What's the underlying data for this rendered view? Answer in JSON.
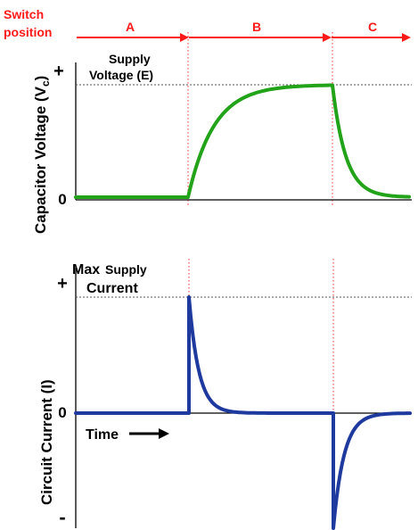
{
  "switch_position": {
    "line1": "Switch",
    "line2": "position",
    "phases": [
      "A",
      "B",
      "C"
    ]
  },
  "top_plot": {
    "y_axis_label_main": "Capacitor Voltage (V",
    "y_axis_label_sub": "c",
    "y_axis_label_end": ")",
    "plus_tick": "+",
    "zero_tick": "0",
    "supply_line1": "Supply",
    "supply_line2": "Voltage (E)"
  },
  "bottom_plot": {
    "y_axis_label": "Circuit Current (I)",
    "plus_tick": "+",
    "zero_tick": "0",
    "minus_tick": "-",
    "max_label_word": "Max",
    "max_label_supply": "Supply",
    "max_label_current": "Current",
    "time_label": "Time"
  },
  "colors": {
    "switch_arrows": "#ff1a1a",
    "phase_dividers": "#ff3333",
    "voltage_curve": "#22a31a",
    "current_curve": "#1f3a9e",
    "axes": "#000000",
    "reference_lines": "#555555"
  }
}
